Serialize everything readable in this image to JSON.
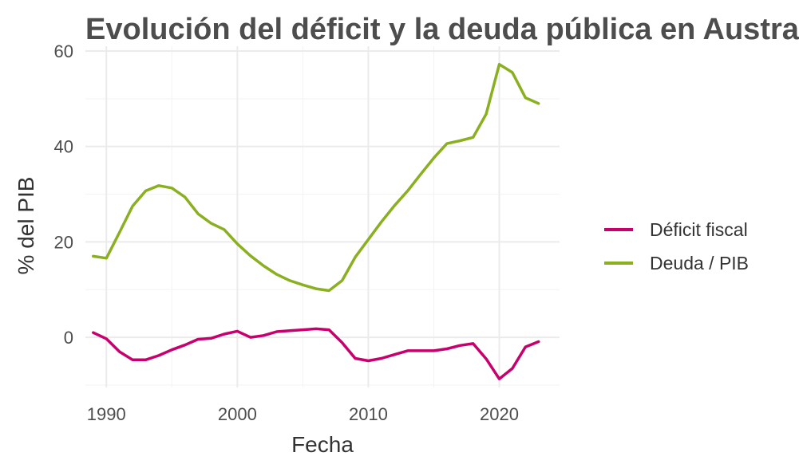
{
  "chart_data": {
    "type": "line",
    "title": "Evolución del déficit y la deuda pública en Australia",
    "xlabel": "Fecha",
    "ylabel": "% del PIB",
    "xlim": [
      1988.4,
      2024.6
    ],
    "ylim": [
      -10.5,
      61
    ],
    "x_ticks": [
      1990,
      2000,
      2010,
      2020
    ],
    "y_ticks": [
      0,
      20,
      40,
      60
    ],
    "grid": true,
    "legend_position": "right",
    "x": [
      1989,
      1990,
      1991,
      1992,
      1993,
      1994,
      1995,
      1996,
      1997,
      1998,
      1999,
      2000,
      2001,
      2002,
      2003,
      2004,
      2005,
      2006,
      2007,
      2008,
      2009,
      2010,
      2011,
      2012,
      2013,
      2014,
      2015,
      2016,
      2017,
      2018,
      2019,
      2020,
      2021,
      2022,
      2023
    ],
    "series": [
      {
        "name": "Déficit fiscal",
        "color": "#c8006e",
        "values": [
          1.0,
          -0.3,
          -3.0,
          -4.7,
          -4.7,
          -3.8,
          -2.6,
          -1.6,
          -0.4,
          -0.2,
          0.7,
          1.3,
          0.0,
          0.4,
          1.2,
          1.4,
          1.6,
          1.8,
          1.6,
          -1.1,
          -4.4,
          -4.9,
          -4.4,
          -3.6,
          -2.8,
          -2.8,
          -2.8,
          -2.4,
          -1.7,
          -1.3,
          -4.5,
          -8.7,
          -6.5,
          -2.0,
          -0.9
        ]
      },
      {
        "name": "Deuda / PIB",
        "color": "#8ab021",
        "values": [
          17.0,
          16.6,
          22.0,
          27.5,
          30.7,
          31.8,
          31.3,
          29.4,
          25.9,
          23.9,
          22.6,
          19.6,
          17.1,
          15.0,
          13.2,
          11.9,
          11.0,
          10.2,
          9.8,
          11.9,
          16.8,
          20.5,
          24.2,
          27.6,
          30.7,
          34.2,
          37.6,
          40.6,
          41.2,
          41.9,
          46.8,
          57.2,
          55.5,
          50.2,
          49.0
        ]
      }
    ]
  }
}
